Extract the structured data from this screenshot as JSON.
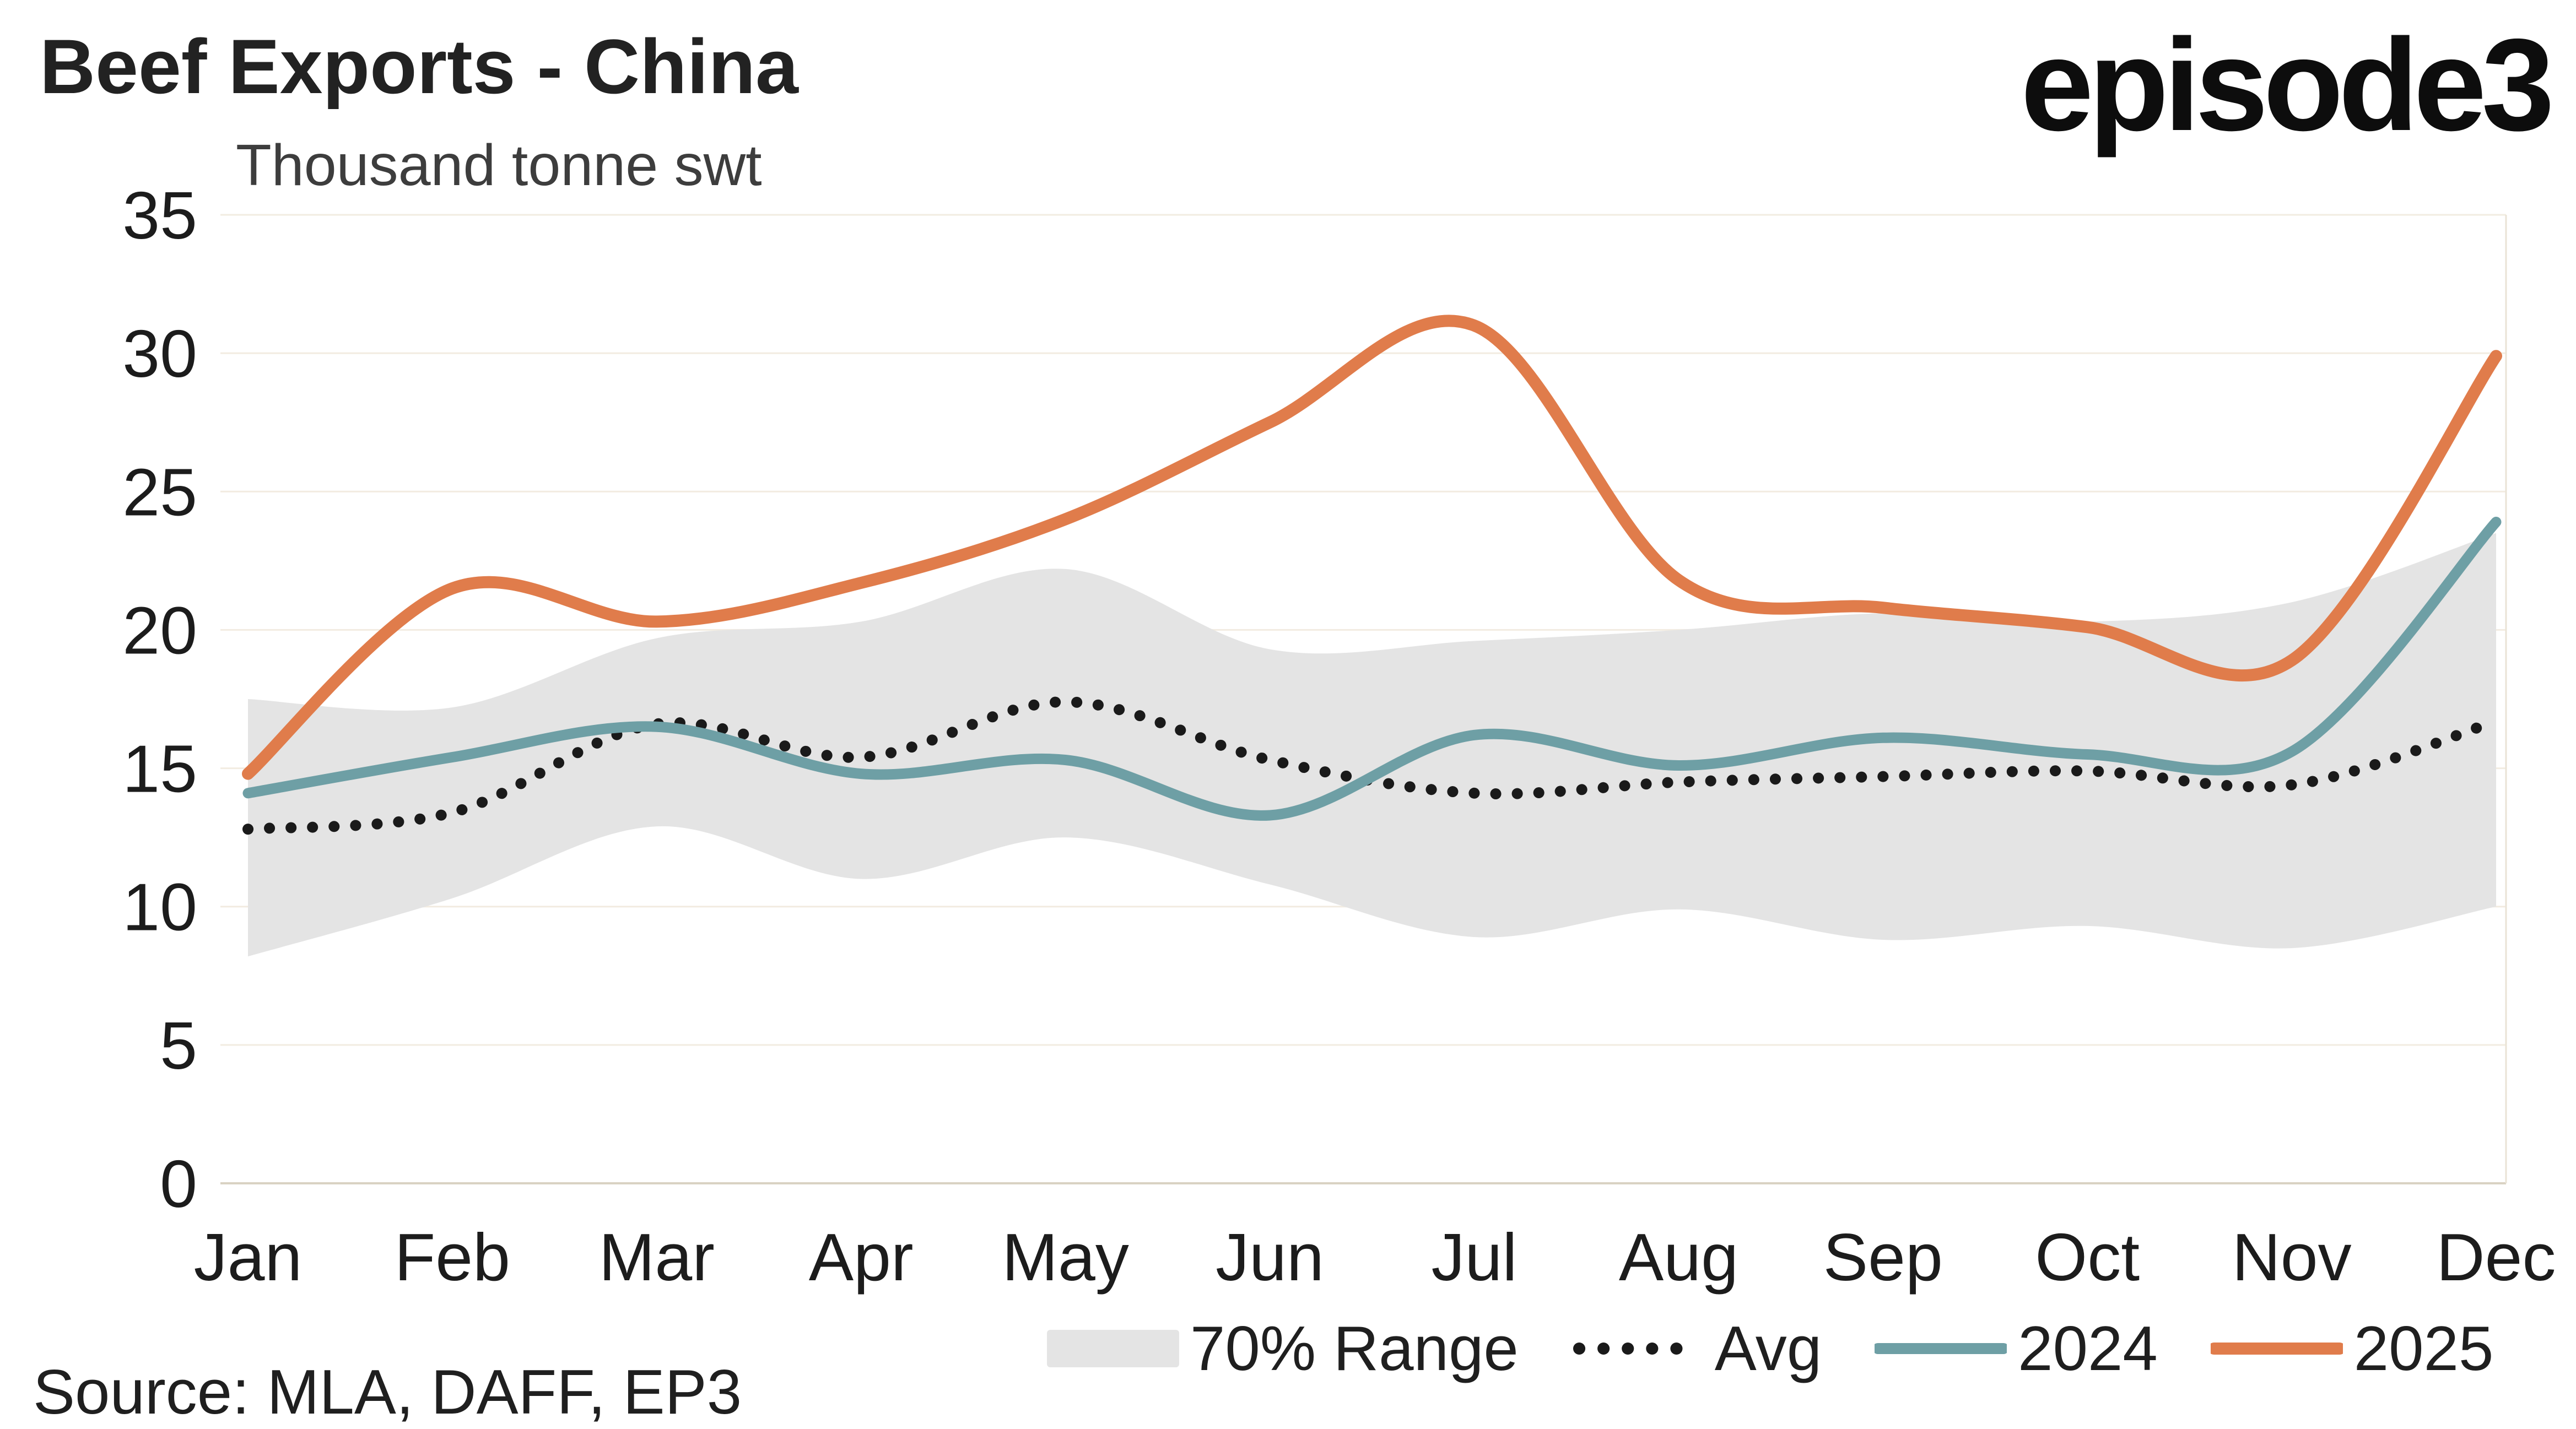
{
  "header": {
    "title": "Beef Exports - China",
    "subtitle": "Thousand tonne swt",
    "logo": "episode3"
  },
  "source": "Source: MLA, DAFF, EP3",
  "legend": {
    "position": "bottom",
    "items": [
      {
        "label": "70% Range",
        "type": "band",
        "color": "#e4e4e4"
      },
      {
        "label": "Avg",
        "type": "dotted",
        "color": "#1a1a1a"
      },
      {
        "label": "2024",
        "type": "line",
        "color": "#6e9fa5"
      },
      {
        "label": "2025",
        "type": "line",
        "color": "#e07c4b"
      }
    ]
  },
  "chart_data": {
    "type": "line",
    "title": "Beef Exports - China",
    "ylabel": "Thousand tonne swt",
    "xlabel": "",
    "categories": [
      "Jan",
      "Feb",
      "Mar",
      "Apr",
      "May",
      "Jun",
      "Jul",
      "Aug",
      "Sep",
      "Oct",
      "Nov",
      "Dec"
    ],
    "ylim": [
      0,
      35
    ],
    "yticks": [
      0,
      5,
      10,
      15,
      20,
      25,
      30,
      35
    ],
    "grid": "horizontal",
    "legend_position": "bottom",
    "band": {
      "name": "70% Range",
      "color": "#e4e4e4",
      "upper": [
        17.5,
        17.2,
        19.7,
        20.3,
        22.2,
        19.3,
        19.6,
        20.0,
        20.6,
        20.3,
        21.0,
        23.5
      ],
      "lower": [
        8.2,
        10.3,
        12.9,
        11.0,
        12.5,
        10.8,
        8.9,
        9.9,
        8.8,
        9.3,
        8.5,
        10.0
      ]
    },
    "series": [
      {
        "name": "Avg",
        "style": "dotted",
        "color": "#1a1a1a",
        "values": [
          12.8,
          13.4,
          16.6,
          15.4,
          17.4,
          15.3,
          14.1,
          14.5,
          14.7,
          14.9,
          14.4,
          16.7
        ]
      },
      {
        "name": "2024",
        "style": "solid",
        "color": "#6e9fa5",
        "values": [
          14.1,
          15.4,
          16.5,
          14.8,
          15.3,
          13.3,
          16.2,
          15.1,
          16.1,
          15.5,
          15.6,
          23.9
        ]
      },
      {
        "name": "2025",
        "style": "solid",
        "color": "#e07c4b",
        "values": [
          14.8,
          21.5,
          20.3,
          21.7,
          24.0,
          27.5,
          31.0,
          21.8,
          20.8,
          20.1,
          18.9,
          29.9
        ]
      }
    ]
  }
}
